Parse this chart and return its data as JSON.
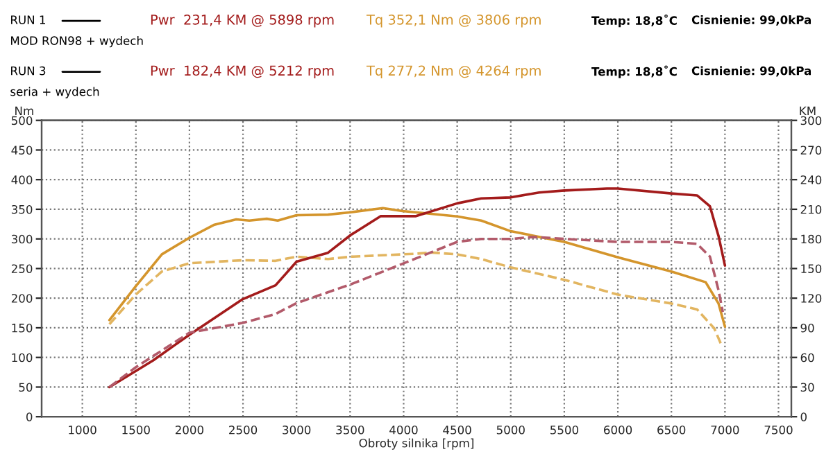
{
  "chart_data": {
    "type": "line",
    "xlabel": "Obroty silnika [rpm]",
    "ylabel": "Nm",
    "y2label": "KM",
    "annotations": [
      "RUN 1",
      "Pwr  231,4 KM @ 5898 rpm",
      "Tq 352,1 Nm @ 3806 rpm",
      "Temp: 18,8˚C",
      "Cisnienie: 99,0kPa",
      "MOD RON98 + wydech",
      "RUN 3",
      "Pwr  182,4 KM @ 5212 rpm",
      "Tq 277,2 Nm @ 4264 rpm",
      "Temp: 18,8˚C",
      "Cisnienie: 99,0kPa",
      "seria + wydech"
    ],
    "xlim": [
      620,
      7620
    ],
    "xticks": [
      1000,
      1500,
      2000,
      2500,
      3000,
      3500,
      4000,
      4500,
      5000,
      5500,
      6000,
      6500,
      7000,
      7500
    ],
    "ylim": [
      0,
      500
    ],
    "yticks": [
      0,
      50,
      100,
      150,
      200,
      250,
      300,
      350,
      400,
      450,
      500
    ],
    "y2lim": [
      0,
      300
    ],
    "y2ticks": [
      0,
      30,
      60,
      90,
      120,
      150,
      180,
      210,
      240,
      270,
      300
    ],
    "grid": true,
    "series": [
      {
        "color": "#a31b1b",
        "axis": "y2",
        "line_style": "solid",
        "x": [
          1253,
          1661,
          2000,
          2498,
          2804,
          3000,
          3294,
          3506,
          3784,
          4110,
          4500,
          4725,
          5000,
          5265,
          5500,
          5898,
          6000,
          6500,
          6740,
          6860,
          6940,
          7000
        ],
        "values": [
          30,
          57,
          83,
          119,
          133,
          157,
          166,
          184,
          203,
          203,
          216,
          221,
          222,
          227,
          229,
          231,
          231,
          226,
          224,
          213,
          183,
          153
        ]
      },
      {
        "color": "#d4952c",
        "axis": "y",
        "line_style": "solid",
        "x": [
          1253,
          1498,
          1743,
          2000,
          2233,
          2437,
          2559,
          2722,
          2824,
          3000,
          3294,
          3506,
          3806,
          3988,
          4110,
          4500,
          4725,
          5000,
          5500,
          6000,
          6500,
          6820,
          6940,
          7000
        ],
        "values": [
          163,
          220,
          274,
          302,
          324,
          333,
          331,
          334,
          331,
          340,
          341,
          345,
          352,
          347,
          345,
          338,
          331,
          313,
          295,
          269,
          245,
          227,
          191,
          152
        ]
      },
      {
        "color": "#b25a6a",
        "axis": "y2",
        "line_style": "dashed",
        "x": [
          1253,
          1498,
          2000,
          2498,
          2804,
          3000,
          3506,
          4110,
          4500,
          4725,
          5000,
          5212,
          5500,
          6000,
          6500,
          6740,
          6860,
          6940,
          6980
        ],
        "values": [
          30,
          50,
          85,
          95,
          104,
          115,
          134,
          160,
          177,
          180,
          180,
          182,
          180,
          177,
          177,
          175,
          162,
          128,
          106
        ]
      },
      {
        "color": "#e2b560",
        "axis": "y",
        "line_style": "dashed",
        "x": [
          1253,
          1498,
          1743,
          2000,
          2498,
          2804,
          3000,
          3294,
          3506,
          4110,
          4264,
          4500,
          4725,
          5000,
          5500,
          6000,
          6500,
          6740,
          6900,
          6960
        ],
        "values": [
          156,
          206,
          245,
          259,
          264,
          263,
          270,
          266,
          270,
          275,
          277,
          274,
          266,
          252,
          231,
          206,
          191,
          181,
          149,
          124
        ]
      }
    ]
  }
}
